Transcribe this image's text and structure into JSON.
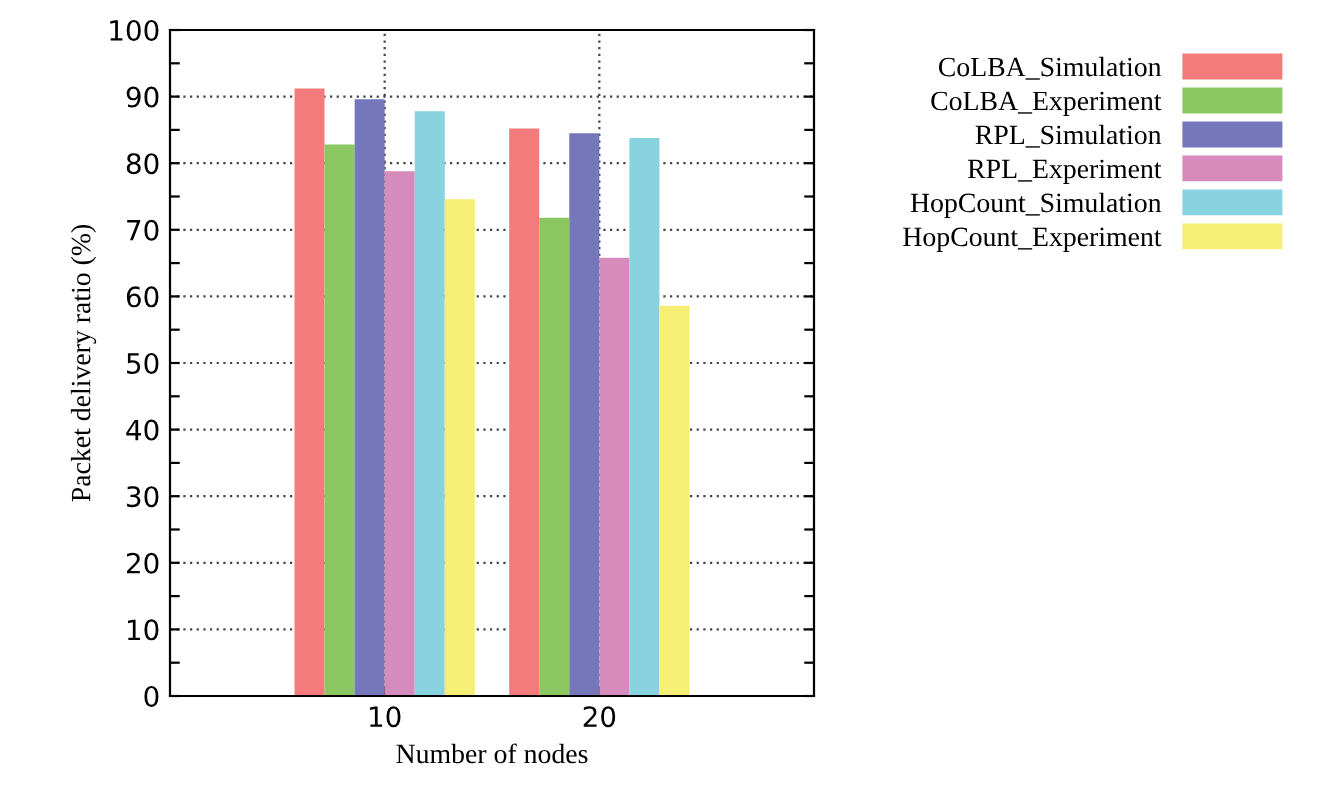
{
  "chart_data": {
    "type": "bar",
    "xlabel": "Number of nodes",
    "ylabel": "Packet delivery ratio (%)",
    "categories": [
      "10",
      "20"
    ],
    "series": [
      {
        "name": "CoLBA_Simulation",
        "color": "#f47b7b",
        "values": [
          91.2,
          85.2
        ]
      },
      {
        "name": "CoLBA_Experiment",
        "color": "#8bc862",
        "values": [
          82.8,
          71.8
        ]
      },
      {
        "name": "RPL_Simulation",
        "color": "#7577ba",
        "values": [
          89.6,
          84.5
        ]
      },
      {
        "name": "RPL_Experiment",
        "color": "#d68bbd",
        "values": [
          78.8,
          65.8
        ]
      },
      {
        "name": "HopCount_Simulation",
        "color": "#89d3e0",
        "values": [
          87.8,
          83.8
        ]
      },
      {
        "name": "HopCount_Experiment",
        "color": "#f7ef75",
        "values": [
          74.6,
          58.6
        ]
      }
    ],
    "ylim": [
      0,
      100
    ],
    "yticks": [
      0,
      {
        "value": 5,
        "label": null
      },
      10,
      {
        "value": 15,
        "label": null
      },
      20,
      {
        "value": 25,
        "label": null
      },
      30,
      {
        "value": 35,
        "label": null
      },
      40,
      {
        "value": 45,
        "label": null
      },
      50,
      {
        "value": 55,
        "label": null
      },
      60,
      {
        "value": 65,
        "label": null
      },
      70,
      {
        "value": 75,
        "label": null
      },
      80,
      {
        "value": 85,
        "label": null
      },
      90,
      {
        "value": 95,
        "label": null
      },
      100
    ],
    "grid": true,
    "legend": "top right"
  }
}
